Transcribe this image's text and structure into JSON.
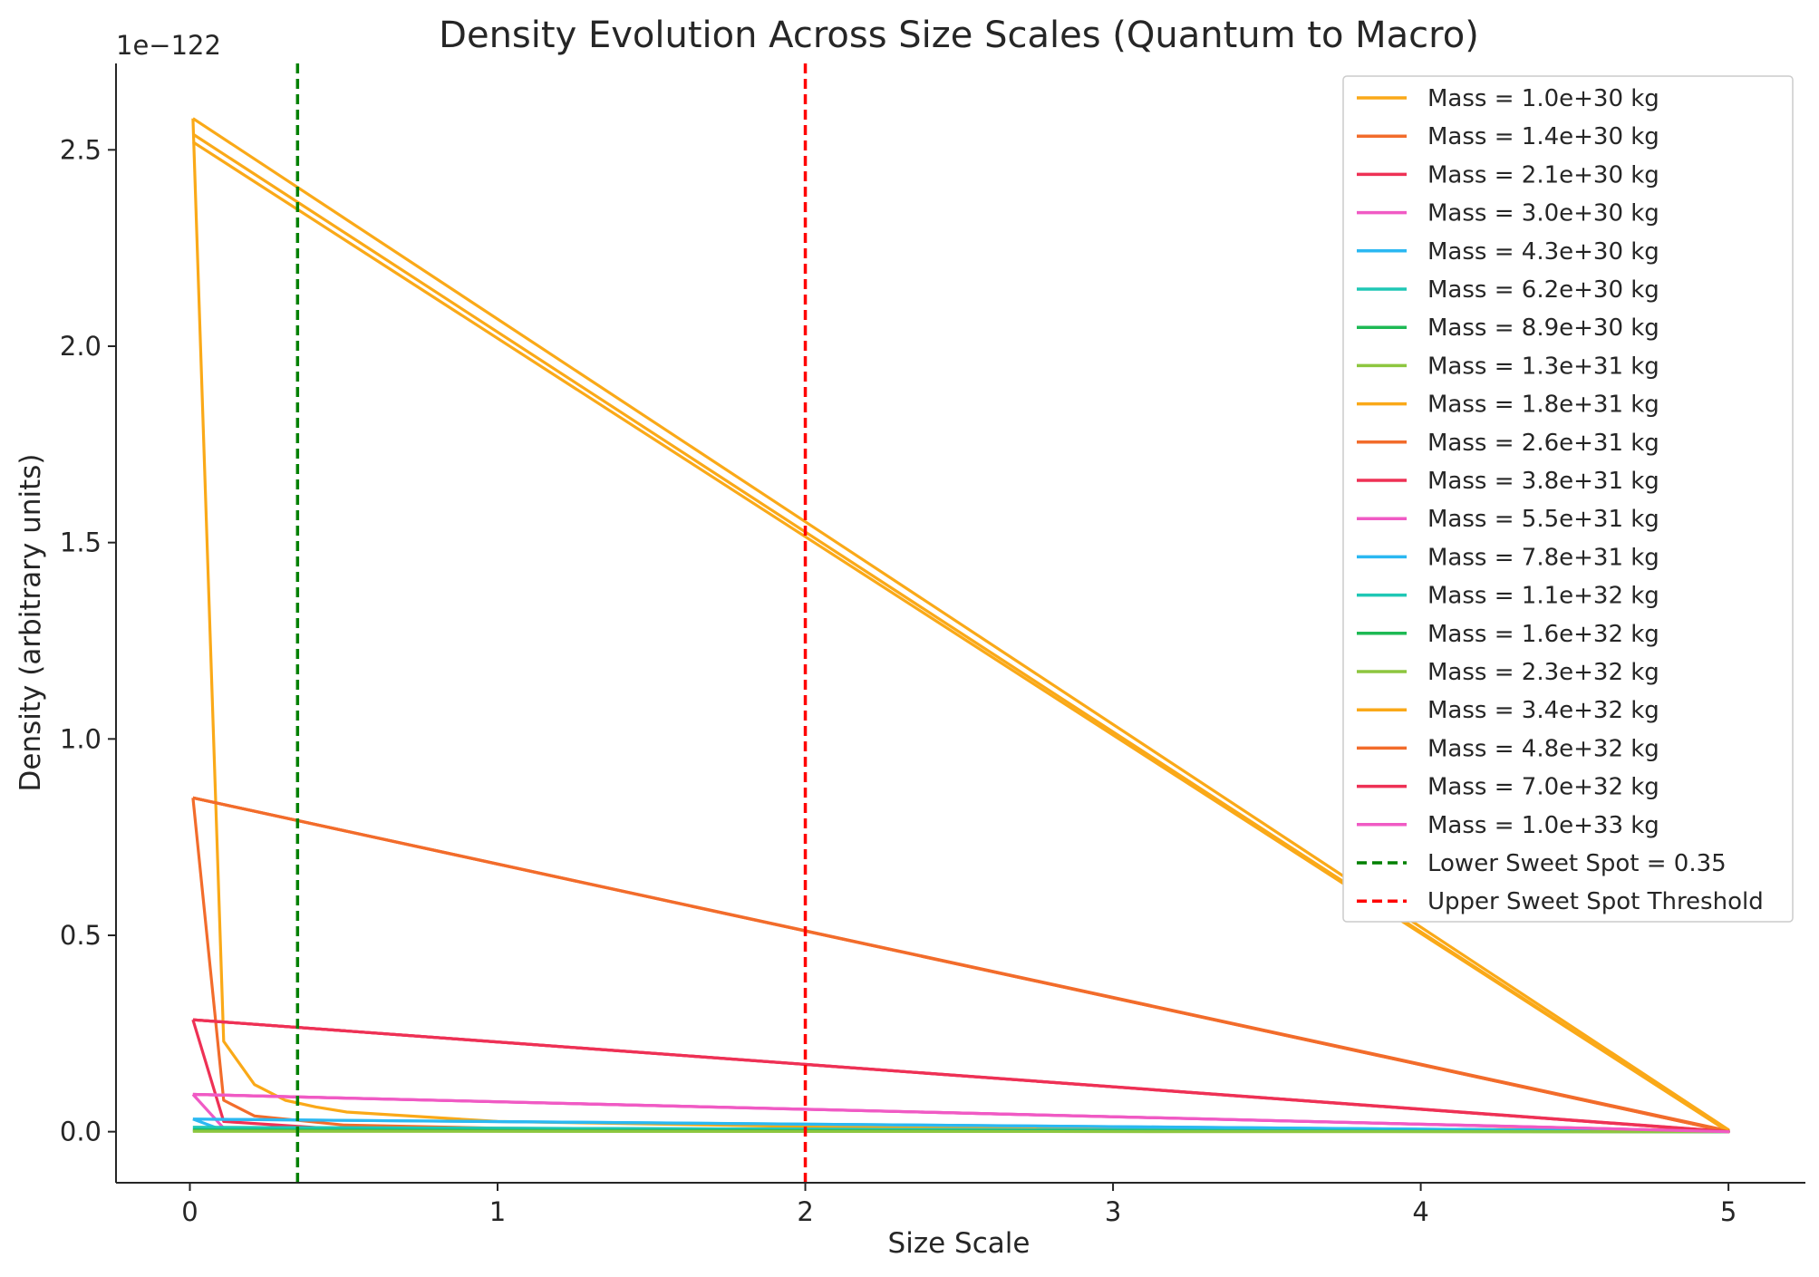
{
  "chart_data": {
    "type": "line",
    "title": "Density Evolution Across Size Scales (Quantum to Macro)",
    "xlabel": "Size Scale",
    "ylabel": "Density (arbitrary units)",
    "y_scale_label": "1e−122",
    "y_scale_factor": 1e-122,
    "xlim": [
      -0.24,
      5.25
    ],
    "ylim": [
      -0.13,
      2.72
    ],
    "xticks": [
      0,
      1,
      2,
      3,
      4,
      5
    ],
    "yticks": [
      0.0,
      0.5,
      1.0,
      1.5,
      2.0,
      2.5
    ],
    "ytick_labels": [
      "0.0",
      "0.5",
      "1.0",
      "1.5",
      "2.0",
      "2.5"
    ],
    "grid": false,
    "legend_position": "upper right",
    "series": [
      {
        "name": "Mass = 1.0e+30 kg",
        "color": "#FAA918",
        "x": [
          0.01,
          0.11,
          0.21,
          0.31,
          0.41,
          0.51,
          1.0,
          2.0,
          3.0,
          4.0,
          5.0,
          0.01
        ],
        "y": [
          2.58,
          0.23,
          0.12,
          0.08,
          0.063,
          0.05,
          0.026,
          0.013,
          0.009,
          0.006,
          0.005,
          2.58
        ]
      },
      {
        "name": "Mass = 1.4e+30 kg",
        "color": "#F26C2B",
        "x": [
          0.01,
          0.11,
          0.21,
          0.5,
          1.0,
          2.0,
          5.0,
          0.01
        ],
        "y": [
          0.85,
          0.08,
          0.04,
          0.017,
          0.009,
          0.004,
          0.002,
          0.85
        ]
      },
      {
        "name": "Mass = 2.1e+30 kg",
        "color": "#EE3155",
        "x": [
          0.01,
          0.11,
          0.5,
          2.0,
          5.0,
          0.01
        ],
        "y": [
          0.285,
          0.026,
          0.006,
          0.0015,
          0.0006,
          0.285
        ]
      },
      {
        "name": "Mass = 3.0e+30 kg",
        "color": "#F05AC4",
        "x": [
          0.01,
          0.11,
          5.0,
          0.01
        ],
        "y": [
          0.095,
          0.009,
          0.0002,
          0.095
        ]
      },
      {
        "name": "Mass = 4.3e+30 kg",
        "color": "#2BB8F2",
        "x": [
          0.01,
          0.11,
          5.0,
          0.01
        ],
        "y": [
          0.032,
          0.003,
          0.0001,
          0.032
        ]
      },
      {
        "name": "Mass = 6.2e+30 kg",
        "color": "#1FC7B5",
        "x": [
          0.01,
          5.0,
          0.01
        ],
        "y": [
          0.011,
          0.0,
          0.011
        ]
      },
      {
        "name": "Mass = 8.9e+30 kg",
        "color": "#1DB954",
        "x": [
          0.01,
          5.0,
          0.01
        ],
        "y": [
          0.004,
          0.0,
          0.004
        ]
      },
      {
        "name": "Mass = 1.3e+31 kg",
        "color": "#8DC63F",
        "x": [
          0.01,
          5.0,
          0.01
        ],
        "y": [
          0.0013,
          0.0,
          0.0013
        ]
      },
      {
        "name": "Mass = 1.8e+31 kg",
        "color": "#FAA918",
        "x": [
          0.01,
          5.0,
          0.01
        ],
        "y": [
          2.54,
          0.0,
          2.54
        ]
      },
      {
        "name": "Mass = 2.6e+31 kg",
        "color": "#F26C2B",
        "x": [
          0.01,
          5.0,
          0.01
        ],
        "y": [
          0.85,
          0.0,
          0.85
        ]
      },
      {
        "name": "Mass = 3.8e+31 kg",
        "color": "#EE3155",
        "x": [
          0.01,
          5.0,
          0.01
        ],
        "y": [
          0.285,
          0.0,
          0.285
        ]
      },
      {
        "name": "Mass = 5.5e+31 kg",
        "color": "#F05AC4",
        "x": [
          0.01,
          5.0,
          0.01
        ],
        "y": [
          0.095,
          0.0,
          0.095
        ]
      },
      {
        "name": "Mass = 7.8e+31 kg",
        "color": "#2BB8F2",
        "x": [
          0.01,
          5.0,
          0.01
        ],
        "y": [
          0.032,
          0.0,
          0.032
        ]
      },
      {
        "name": "Mass = 1.1e+32 kg",
        "color": "#1FC7B5",
        "x": [
          0.01,
          5.0,
          0.01
        ],
        "y": [
          0.011,
          0.0,
          0.011
        ]
      },
      {
        "name": "Mass = 1.6e+32 kg",
        "color": "#1DB954",
        "x": [
          0.01,
          5.0,
          0.01
        ],
        "y": [
          0.004,
          0.0,
          0.004
        ]
      },
      {
        "name": "Mass = 2.3e+32 kg",
        "color": "#8DC63F",
        "x": [
          0.01,
          5.0,
          0.01
        ],
        "y": [
          0.0013,
          0.0,
          0.0013
        ]
      },
      {
        "name": "Mass = 3.4e+32 kg",
        "color": "#FAA918",
        "x": [
          0.01,
          5.0,
          0.01
        ],
        "y": [
          2.52,
          0.0,
          2.52
        ]
      },
      {
        "name": "Mass = 4.8e+32 kg",
        "color": "#F26C2B",
        "x": [
          0.01,
          5.0,
          0.01
        ],
        "y": [
          0.85,
          0.0,
          0.85
        ]
      },
      {
        "name": "Mass = 7.0e+32 kg",
        "color": "#EE3155",
        "x": [
          0.01,
          5.0,
          0.01
        ],
        "y": [
          0.285,
          0.0,
          0.285
        ]
      },
      {
        "name": "Mass = 1.0e+33 kg",
        "color": "#F05AC4",
        "x": [
          0.01,
          5.0,
          0.01
        ],
        "y": [
          0.095,
          0.0,
          0.095
        ]
      }
    ],
    "reference_lines": [
      {
        "name": "Lower Sweet Spot = 0.35",
        "x": 0.35,
        "color": "#008000",
        "style": "dashed"
      },
      {
        "name": "Upper Sweet Spot Threshold",
        "x": 2.0,
        "color": "#FF0000",
        "style": "dashed"
      }
    ]
  }
}
